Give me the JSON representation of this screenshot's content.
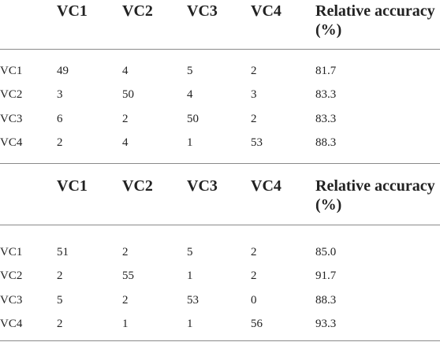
{
  "tables": [
    {
      "columns": [
        "VC1",
        "VC2",
        "VC3",
        "VC4",
        "Relative accuracy (%)"
      ],
      "rows": [
        [
          "VC1",
          "49",
          "4",
          "5",
          "2",
          "81.7"
        ],
        [
          "VC2",
          "3",
          "50",
          "4",
          "3",
          "83.3"
        ],
        [
          "VC3",
          "6",
          "2",
          "50",
          "2",
          "83.3"
        ],
        [
          "VC4",
          "2",
          "4",
          "1",
          "53",
          "88.3"
        ]
      ]
    },
    {
      "columns": [
        "VC1",
        "VC2",
        "VC3",
        "VC4",
        "Relative accuracy (%)"
      ],
      "rows": [
        [
          "VC1",
          "51",
          "2",
          "5",
          "2",
          "85.0"
        ],
        [
          "VC2",
          "2",
          "55",
          "1",
          "2",
          "91.7"
        ],
        [
          "VC3",
          "5",
          "2",
          "53",
          "0",
          "88.3"
        ],
        [
          "VC4",
          "2",
          "1",
          "1",
          "56",
          "93.3"
        ]
      ]
    }
  ]
}
